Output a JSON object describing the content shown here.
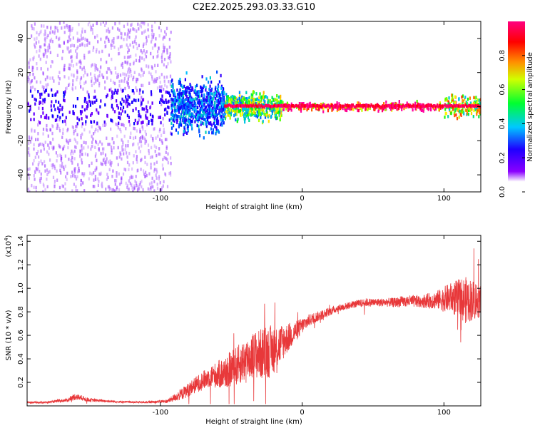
{
  "title": "C2E2.2025.293.03.33.G10",
  "chart_data": [
    {
      "type": "heatmap",
      "name": "spectrogram",
      "xlabel": "Height of straight line (km)",
      "ylabel": "Frequency (Hz)",
      "xlim": [
        -194,
        126
      ],
      "ylim": [
        -50,
        50
      ],
      "x_ticks": [
        -100,
        0,
        100
      ],
      "x_tick_labels": [
        "-100",
        "0",
        "100"
      ],
      "y_ticks": [
        -40,
        -20,
        0,
        20,
        40
      ],
      "y_tick_labels": [
        "-40",
        "-20",
        "0",
        "20",
        "40"
      ],
      "colorbar": {
        "label": "Normalized spectral amplitude",
        "range": [
          0,
          1
        ],
        "ticks": [
          0,
          0.2,
          0.4,
          0.6,
          0.8
        ],
        "tick_labels": [
          "0.0",
          "0.2",
          "0.4",
          "0.6",
          "0.8"
        ],
        "colormap": [
          "#ffffff",
          "#7a00ff",
          "#0000ff",
          "#00bfff",
          "#00ff00",
          "#ffff00",
          "#ff8000",
          "#ff0000",
          "#ff00a0"
        ]
      },
      "regions": [
        {
          "x_range": [
            -194,
            -93
          ],
          "freq_spread": 50,
          "mean_amplitude": 0.08,
          "description": "scattered noise"
        },
        {
          "x_range": [
            -93,
            -55
          ],
          "freq_spread": 12,
          "mean_amplitude": 0.3
        },
        {
          "x_range": [
            -55,
            -15
          ],
          "freq_spread": 6,
          "mean_amplitude": 0.5
        },
        {
          "x_range": [
            -15,
            100
          ],
          "freq_spread": 2,
          "mean_amplitude": 0.9
        },
        {
          "x_range": [
            100,
            126
          ],
          "freq_spread": 5,
          "mean_amplitude": 0.6
        }
      ]
    },
    {
      "type": "line",
      "name": "snr",
      "xlabel": "Height of straight line (km)",
      "ylabel": "SNR (10 * v/v)",
      "y_scale_label": "(x10",
      "y_scale_exponent": "4",
      "xlim": [
        -194,
        126
      ],
      "ylim": [
        0,
        14500
      ],
      "x_ticks": [
        -100,
        0,
        100
      ],
      "x_tick_labels": [
        "-100",
        "0",
        "100"
      ],
      "y_ticks": [
        2000,
        4000,
        6000,
        8000,
        10000,
        12000,
        14000
      ],
      "y_tick_labels": [
        "0.2",
        "0.4",
        "0.6",
        "0.8",
        "1.0",
        "1.2",
        "1.4"
      ],
      "color": "#e8383a",
      "series": [
        {
          "name": "SNR",
          "x": [
            -194,
            -180,
            -165,
            -160,
            -150,
            -130,
            -110,
            -95,
            -85,
            -75,
            -65,
            -55,
            -45,
            -35,
            -25,
            -18,
            -12,
            -5,
            0,
            5,
            15,
            25,
            35,
            45,
            55,
            65,
            75,
            85,
            95,
            105,
            115,
            126
          ],
          "y": [
            300,
            300,
            500,
            800,
            500,
            350,
            300,
            400,
            1000,
            1800,
            2500,
            2800,
            3500,
            4300,
            4500,
            5000,
            5600,
            6300,
            6800,
            7300,
            7800,
            8300,
            8600,
            8800,
            8800,
            8800,
            8900,
            8900,
            9000,
            9200,
            9000,
            9000
          ],
          "noise": [
            80,
            80,
            150,
            300,
            150,
            80,
            80,
            150,
            500,
            700,
            900,
            1400,
            1700,
            2000,
            2300,
            2000,
            1400,
            900,
            700,
            500,
            400,
            300,
            300,
            350,
            350,
            400,
            500,
            550,
            800,
            1300,
            2000,
            1500
          ]
        }
      ]
    }
  ]
}
